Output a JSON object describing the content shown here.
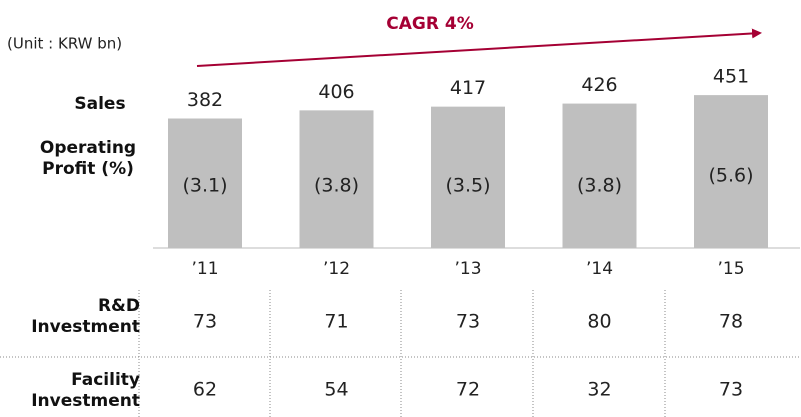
{
  "chart_data": {
    "type": "bar",
    "unit": "(Unit : KRW bn)",
    "annotation": "CAGR 4%",
    "categories": [
      "’11",
      "’12",
      "’13",
      "’14",
      "’15"
    ],
    "series": [
      {
        "name": "Sales",
        "color": "#bfbfbf",
        "values": [
          382,
          406,
          417,
          426,
          451
        ]
      },
      {
        "name": "Operating Profit (%)",
        "values": [
          3.1,
          3.8,
          3.5,
          3.8,
          5.6
        ],
        "value_labels": [
          "(3.1)",
          "(3.8)",
          "(3.5)",
          "(3.8)",
          "(5.6)"
        ]
      }
    ],
    "table": [
      {
        "name": "R&D Investment",
        "values": [
          73,
          71,
          73,
          80,
          78
        ]
      },
      {
        "name": "Facility Investment",
        "values": [
          62,
          54,
          72,
          32,
          73
        ]
      }
    ],
    "annotation_color": "#a50034"
  }
}
